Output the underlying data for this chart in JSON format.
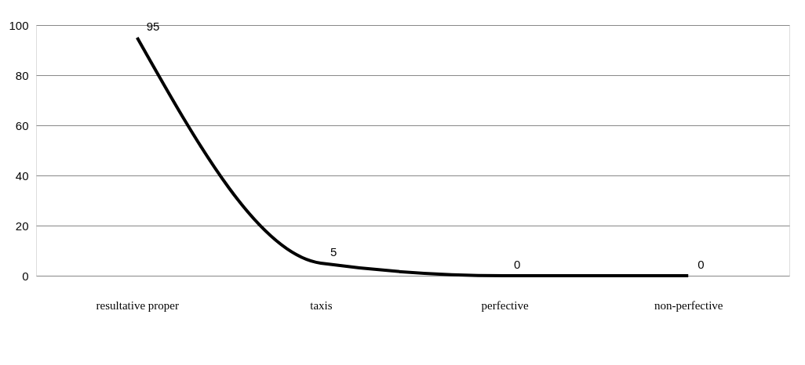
{
  "chart_data": {
    "type": "line",
    "categories": [
      "resultative proper",
      "taxis",
      "perfective",
      "non-perfective"
    ],
    "series": [
      {
        "color": "#000000",
        "values": [
          95,
          5,
          0,
          0
        ]
      }
    ],
    "ylim": [
      0,
      100
    ],
    "yticks": [
      0,
      20,
      40,
      60,
      80,
      100
    ],
    "grid": "y",
    "legend": false,
    "marker": "none",
    "line_style": "solid",
    "data_labels": true
  }
}
